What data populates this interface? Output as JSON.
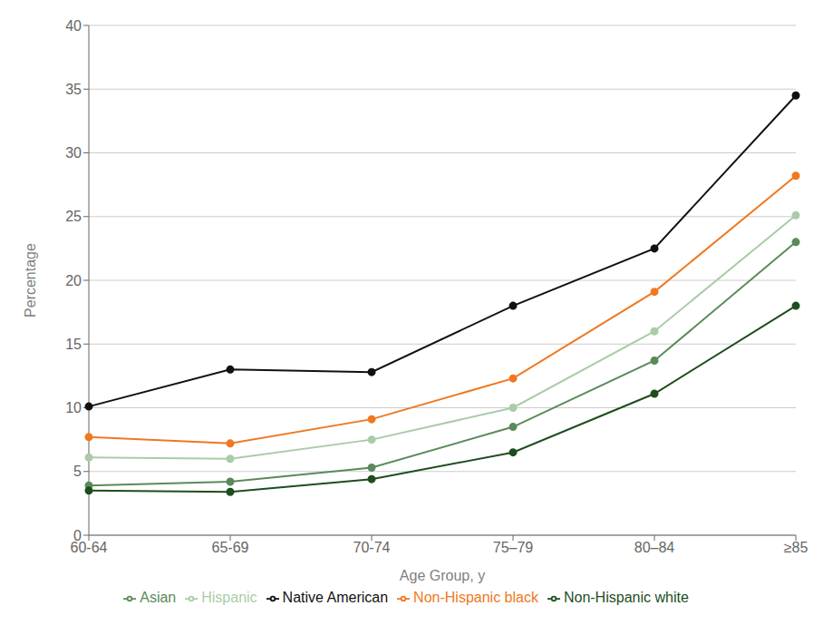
{
  "chart_data": {
    "type": "line",
    "xlabel": "Age Group, y",
    "ylabel": "Percentage",
    "categories": [
      "60-64",
      "65-69",
      "70-74",
      "75–79",
      "80–84",
      "≥85"
    ],
    "series": [
      {
        "name": "Native American",
        "color": "#111111",
        "values": [
          10.1,
          13.0,
          12.8,
          18.0,
          22.5,
          34.5
        ]
      },
      {
        "name": "Non-Hispanic black",
        "color": "#f07820",
        "values": [
          7.7,
          7.2,
          9.1,
          12.3,
          19.1,
          28.2
        ]
      },
      {
        "name": "Hispanic",
        "color": "#aacca8",
        "values": [
          6.1,
          6.0,
          7.5,
          10.0,
          16.0,
          25.1
        ]
      },
      {
        "name": "Asian",
        "color": "#5a8a5a",
        "values": [
          3.9,
          4.2,
          5.3,
          8.5,
          13.7,
          23.0
        ]
      },
      {
        "name": "Non-Hispanic white",
        "color": "#1e4d1e",
        "values": [
          3.5,
          3.4,
          4.4,
          6.5,
          11.1,
          18.0
        ]
      }
    ],
    "ylim": [
      0,
      40
    ],
    "yticks": [
      0,
      5,
      10,
      15,
      20,
      25,
      30,
      35,
      40
    ],
    "grid": true,
    "legend": "bottom",
    "marker": "circle"
  }
}
